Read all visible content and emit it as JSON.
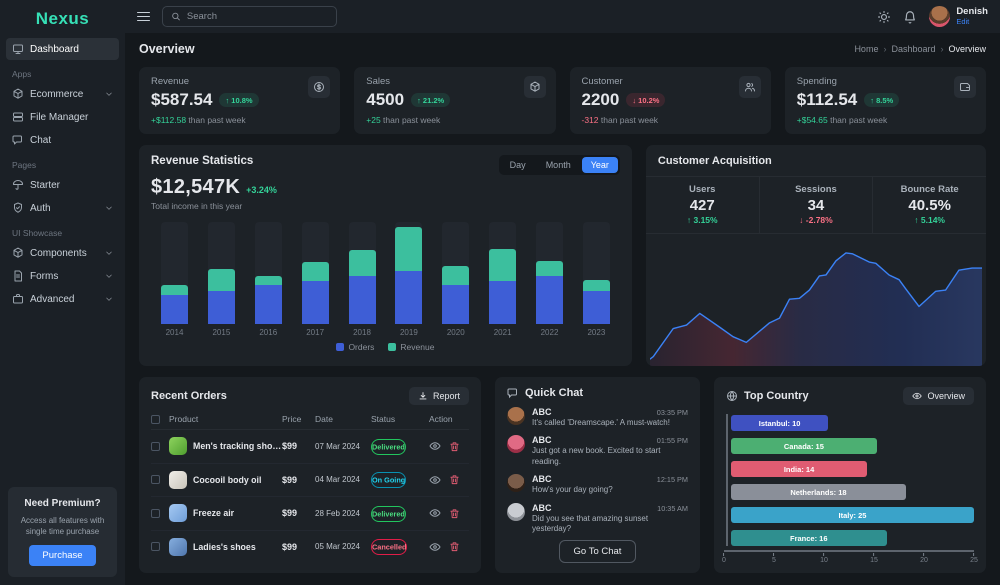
{
  "app": {
    "logo": "Nexus"
  },
  "sidebar": {
    "items": [
      {
        "label": "Dashboard",
        "icon": "dashboard-icon",
        "active": true
      },
      {
        "section": "Apps"
      },
      {
        "label": "Ecommerce",
        "icon": "ecommerce-icon",
        "chevron": true
      },
      {
        "label": "File Manager",
        "icon": "file-manager-icon"
      },
      {
        "label": "Chat",
        "icon": "chat-icon"
      },
      {
        "section": "Pages"
      },
      {
        "label": "Starter",
        "icon": "starter-icon"
      },
      {
        "label": "Auth",
        "icon": "auth-icon",
        "chevron": true
      },
      {
        "section": "UI Showcase"
      },
      {
        "label": "Components",
        "icon": "components-icon",
        "chevron": true
      },
      {
        "label": "Forms",
        "icon": "forms-icon",
        "chevron": true
      },
      {
        "label": "Advanced",
        "icon": "advanced-icon",
        "chevron": true
      }
    ],
    "premium": {
      "title": "Need Premium?",
      "desc": "Access all features with single time purchase",
      "button": "Purchase"
    }
  },
  "topbar": {
    "search_placeholder": "Search",
    "user_name": "Denish",
    "user_action": "Edit"
  },
  "page": {
    "title": "Overview",
    "breadcrumb": [
      "Home",
      "Dashboard",
      "Overview"
    ]
  },
  "stat_cards": [
    {
      "label": "Revenue",
      "value": "$587.54",
      "badge": "10.8%",
      "badge_dir": "up",
      "delta": "+$112.58",
      "delta_dir": "up",
      "suffix": "than past week",
      "icon": "dollar-icon"
    },
    {
      "label": "Sales",
      "value": "4500",
      "badge": "21.2%",
      "badge_dir": "up",
      "delta": "+25",
      "delta_dir": "up",
      "suffix": "than past week",
      "icon": "package-icon"
    },
    {
      "label": "Customer",
      "value": "2200",
      "badge": "10.2%",
      "badge_dir": "down",
      "delta": "-312",
      "delta_dir": "down",
      "suffix": "than past week",
      "icon": "users-icon"
    },
    {
      "label": "Spending",
      "value": "$112.54",
      "badge": "8.5%",
      "badge_dir": "up",
      "delta": "+$54.65",
      "delta_dir": "up",
      "suffix": "than past week",
      "icon": "wallet-icon"
    }
  ],
  "revenue_statistics": {
    "title": "Revenue Statistics",
    "value": "$12,547K",
    "change": "+3.24%",
    "subtitle": "Total income in this year",
    "tabs": [
      "Day",
      "Month",
      "Year"
    ],
    "active_tab": "Year",
    "legend": [
      {
        "name": "Orders",
        "color": "#3e5ed6"
      },
      {
        "name": "Revenue",
        "color": "#3cbf9e"
      }
    ]
  },
  "customer_acquisition": {
    "title": "Customer Acquisition",
    "stats": [
      {
        "label": "Users",
        "value": "427",
        "delta": "3.15%",
        "dir": "up"
      },
      {
        "label": "Sessions",
        "value": "34",
        "delta": "-2.78%",
        "dir": "down"
      },
      {
        "label": "Bounce Rate",
        "value": "40.5%",
        "delta": "5.14%",
        "dir": "up"
      }
    ]
  },
  "recent_orders": {
    "title": "Recent Orders",
    "report_label": "Report",
    "columns": [
      "Product",
      "Price",
      "Date",
      "Status",
      "Action"
    ],
    "rows": [
      {
        "product": "Men's tracking shoes",
        "price": "$99",
        "date": "07 Mar 2024",
        "status": "Delivered",
        "thumb_colors": [
          "#8ed35e",
          "#4f9f2f"
        ]
      },
      {
        "product": "Cocooil body oil",
        "price": "$99",
        "date": "04 Mar 2024",
        "status": "On Going",
        "thumb_colors": [
          "#f0eee9",
          "#c9c4ba"
        ]
      },
      {
        "product": "Freeze air",
        "price": "$99",
        "date": "28 Feb 2024",
        "status": "Delivered",
        "thumb_colors": [
          "#a5c9f2",
          "#6f9ed8"
        ]
      },
      {
        "product": "Ladies's shoes",
        "price": "$99",
        "date": "05 Mar 2024",
        "status": "Cancelled",
        "thumb_colors": [
          "#86aede",
          "#4f76ad"
        ]
      }
    ]
  },
  "quick_chat": {
    "title": "Quick Chat",
    "button": "Go To Chat",
    "messages": [
      {
        "name": "ABC",
        "time": "03:35 PM",
        "text": "It's called 'Dreamscape.' A must-watch!",
        "avatar_colors": [
          "#a9714b",
          "#4a3322"
        ]
      },
      {
        "name": "ABC",
        "time": "01:55 PM",
        "text": "Just got a new book. Excited to start reading.",
        "avatar_colors": [
          "#e06a84",
          "#9c2f47"
        ]
      },
      {
        "name": "ABC",
        "time": "12:15 PM",
        "text": "How's your day going?",
        "avatar_colors": [
          "#7a5c49",
          "#2e2017"
        ]
      },
      {
        "name": "ABC",
        "time": "10:35 AM",
        "text": "Did you see that amazing sunset yesterday?",
        "avatar_colors": [
          "#c9ccd1",
          "#8e9298"
        ]
      }
    ]
  },
  "top_country": {
    "title": "Top Country",
    "overview_label": "Overview"
  },
  "chart_data": [
    {
      "type": "bar",
      "subtype": "stacked-vertical",
      "title": "Revenue Statistics",
      "categories": [
        "2014",
        "2015",
        "2016",
        "2017",
        "2018",
        "2019",
        "2020",
        "2021",
        "2022",
        "2023"
      ],
      "series": [
        {
          "name": "Orders",
          "color": "#3e5ed6",
          "values": [
            28,
            32,
            38,
            42,
            47,
            52,
            38,
            42,
            47,
            32
          ]
        },
        {
          "name": "Revenue",
          "color": "#3cbf9e",
          "values": [
            10,
            22,
            9,
            19,
            26,
            43,
            19,
            32,
            15,
            11
          ]
        }
      ],
      "units": "percent of plot height (unlabeled axis)",
      "ylim": [
        0,
        100
      ],
      "grid": false,
      "legend_position": "bottom"
    },
    {
      "type": "area",
      "title": "Customer Acquisition",
      "line_color": "#3b82f6",
      "fill_gradient": [
        "#452635",
        "#253056"
      ],
      "x_range": [
        0,
        100
      ],
      "y_range": [
        0,
        100
      ],
      "points": [
        [
          1,
          6
        ],
        [
          7,
          30
        ],
        [
          11,
          33
        ],
        [
          15,
          43
        ],
        [
          21,
          31
        ],
        [
          25,
          23
        ],
        [
          29,
          18
        ],
        [
          36,
          35
        ],
        [
          39,
          39
        ],
        [
          42,
          55
        ],
        [
          45,
          56
        ],
        [
          48,
          63
        ],
        [
          51,
          75
        ],
        [
          53,
          76
        ],
        [
          56,
          88
        ],
        [
          59,
          95
        ],
        [
          61,
          94
        ],
        [
          66,
          87
        ],
        [
          68,
          86
        ],
        [
          72,
          76
        ],
        [
          75,
          72
        ],
        [
          77,
          64
        ],
        [
          81,
          49
        ],
        [
          86,
          62
        ],
        [
          89,
          63
        ],
        [
          93,
          80
        ],
        [
          97,
          82
        ]
      ]
    },
    {
      "type": "bar",
      "orientation": "horizontal",
      "title": "Top Country",
      "categories": [
        "Istanbul",
        "Canada",
        "India",
        "Netherlands",
        "Italy",
        "France"
      ],
      "values": [
        10,
        15,
        14,
        18,
        25,
        16
      ],
      "bar_labels": [
        "Istanbul: 10",
        "Canada: 15",
        "India: 14",
        "Netherlands: 18",
        "Italy: 25",
        "France: 16"
      ],
      "colors": [
        "#3f51c1",
        "#4caf72",
        "#e05c72",
        "#8a8f99",
        "#3aa3c9",
        "#2f8f8f"
      ],
      "xlim": [
        0,
        25
      ],
      "x_ticks": [
        0,
        5,
        10,
        15,
        20,
        25
      ],
      "grid": false
    }
  ]
}
